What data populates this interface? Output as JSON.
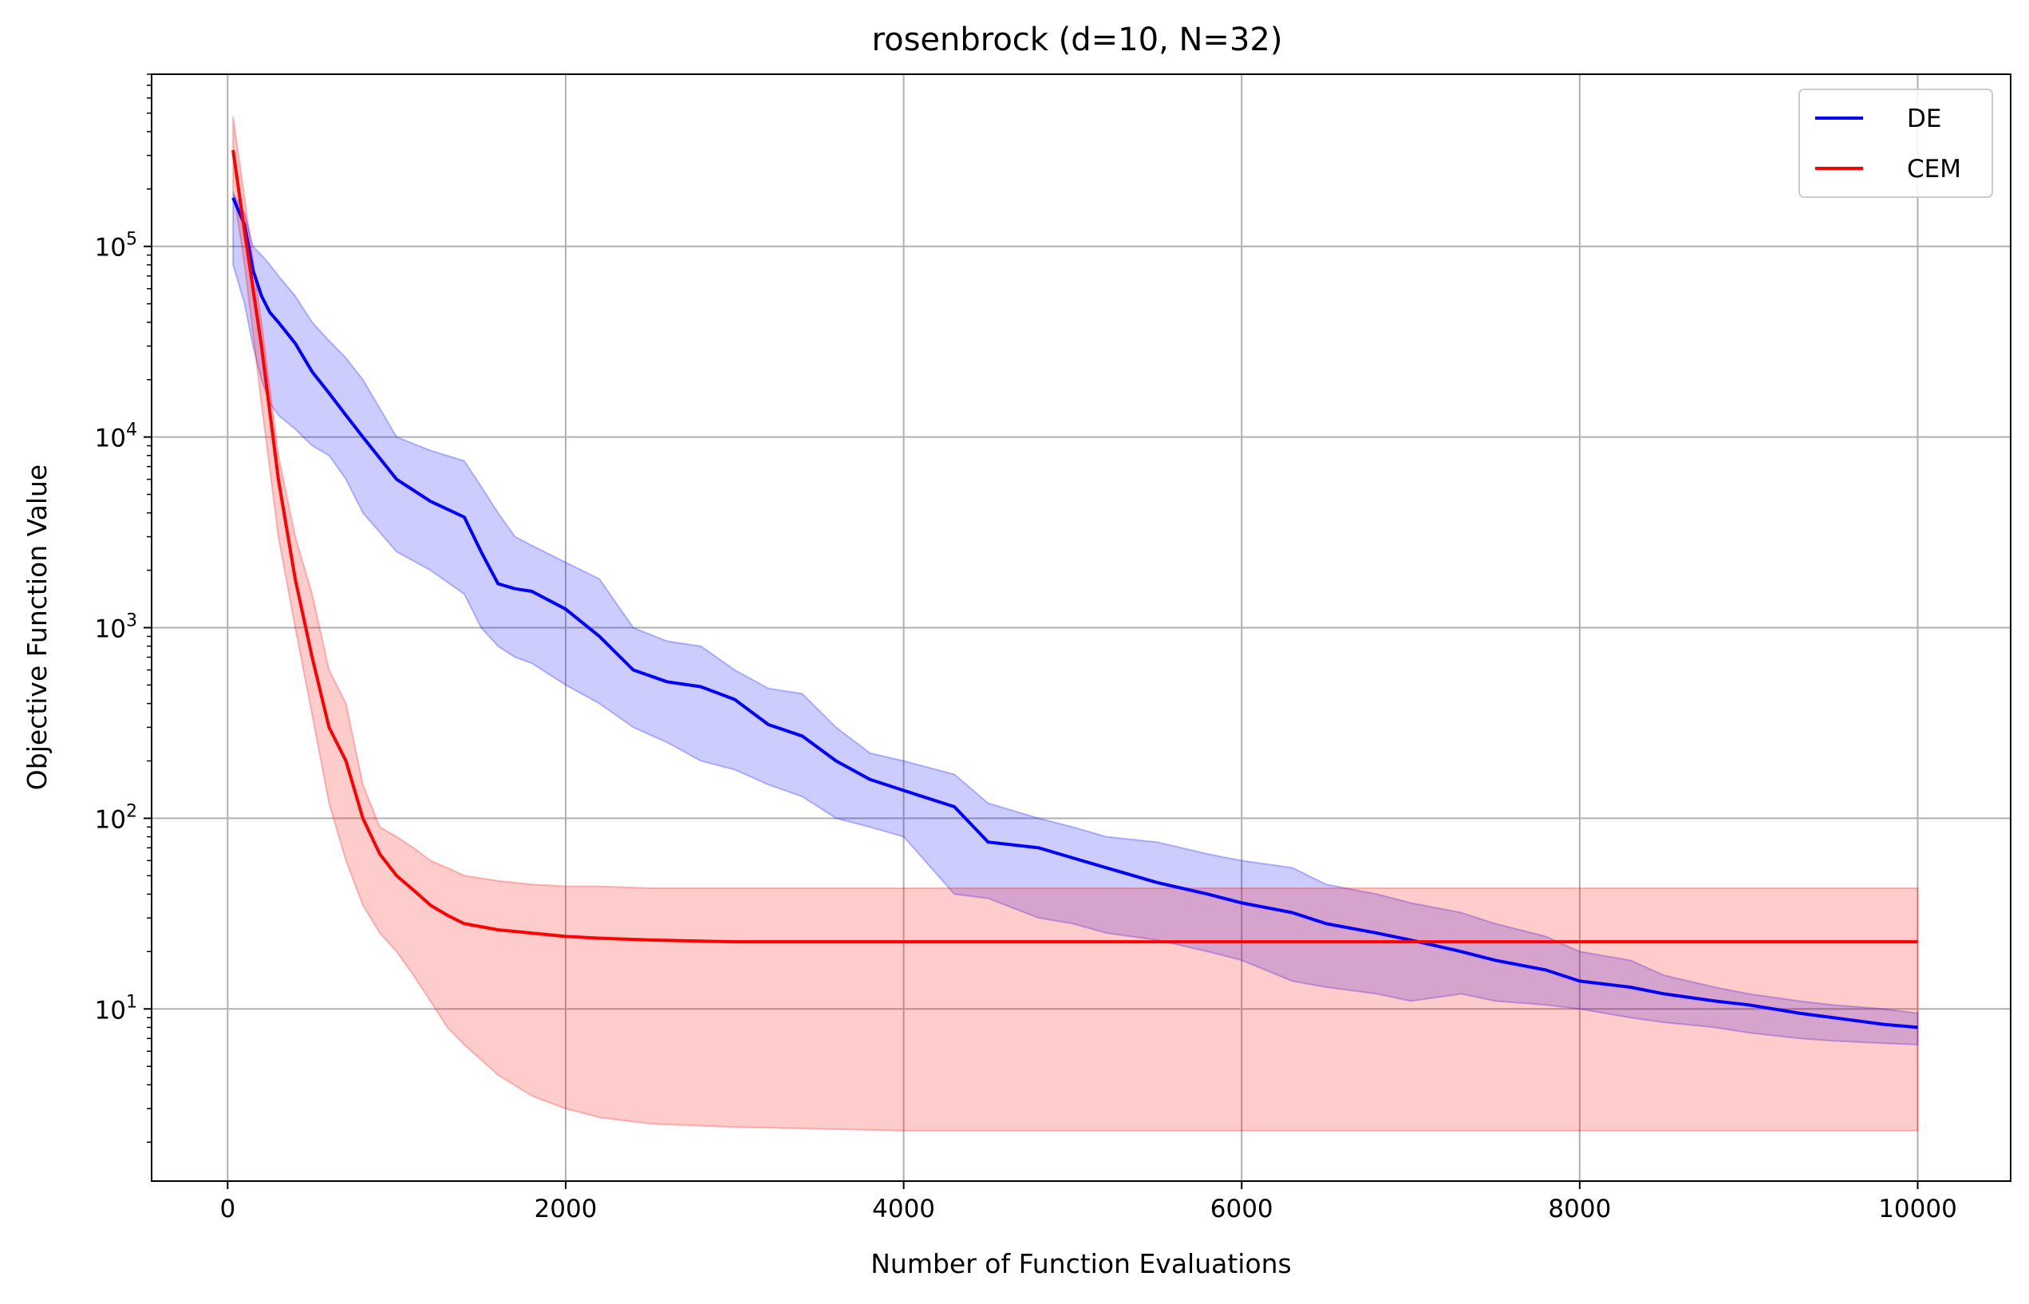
{
  "chart_data": {
    "type": "line",
    "title": "rosenbrock (d=10, N=32)",
    "xlabel": "Number of Function Evaluations",
    "ylabel": "Objective Function Value",
    "xscale": "linear",
    "yscale": "log",
    "xlim": [
      -450,
      10550
    ],
    "ylim": [
      1.25,
      800000
    ],
    "xticks": [
      0,
      2000,
      4000,
      6000,
      8000,
      10000
    ],
    "xtick_labels": [
      "0",
      "2000",
      "4000",
      "6000",
      "8000",
      "10000"
    ],
    "yticks": [
      10,
      100,
      1000,
      10000,
      100000
    ],
    "ytick_labels": [
      {
        "base": "10",
        "exp": "1"
      },
      {
        "base": "10",
        "exp": "2"
      },
      {
        "base": "10",
        "exp": "3"
      },
      {
        "base": "10",
        "exp": "4"
      },
      {
        "base": "10",
        "exp": "5"
      }
    ],
    "grid": true,
    "legend_position": "upper-right",
    "series": [
      {
        "name": "DE",
        "color": "#0000ff",
        "band_color": "#0000ff",
        "x": [
          32,
          100,
          150,
          200,
          250,
          300,
          400,
          500,
          600,
          700,
          800,
          1000,
          1200,
          1400,
          1500,
          1600,
          1700,
          1800,
          2000,
          2200,
          2400,
          2600,
          2800,
          3000,
          3200,
          3400,
          3600,
          3800,
          4000,
          4300,
          4500,
          4800,
          5000,
          5200,
          5500,
          5800,
          6000,
          6300,
          6500,
          6800,
          7000,
          7300,
          7500,
          7800,
          8000,
          8300,
          8500,
          8800,
          9000,
          9300,
          9500,
          9800,
          10000
        ],
        "y": [
          180000,
          130000,
          75000,
          55000,
          45000,
          40000,
          31000,
          22000,
          17000,
          13000,
          10000,
          6000,
          4600,
          3800,
          2500,
          1700,
          1600,
          1550,
          1250,
          900,
          600,
          520,
          490,
          420,
          310,
          270,
          200,
          160,
          140,
          115,
          75,
          70,
          62,
          55,
          46,
          40,
          36,
          32,
          28,
          25,
          23,
          20,
          18,
          16,
          14,
          13,
          12,
          11,
          10.5,
          9.5,
          9,
          8.3,
          8
        ],
        "upper": [
          190000,
          150000,
          100000,
          90000,
          80000,
          70000,
          55000,
          40000,
          32000,
          26000,
          20000,
          10000,
          8500,
          7500,
          5500,
          4000,
          3000,
          2700,
          2200,
          1800,
          1000,
          850,
          800,
          600,
          480,
          450,
          300,
          220,
          200,
          170,
          120,
          100,
          90,
          80,
          75,
          65,
          60,
          55,
          45,
          40,
          36,
          32,
          28,
          24,
          20,
          18,
          15,
          13,
          12,
          11,
          10.5,
          10,
          9.5
        ],
        "lower": [
          80000,
          50000,
          30000,
          20000,
          15000,
          13000,
          11000,
          9000,
          8000,
          6000,
          4000,
          2500,
          2000,
          1500,
          1000,
          800,
          700,
          650,
          500,
          400,
          300,
          250,
          200,
          180,
          150,
          130,
          100,
          90,
          80,
          40,
          38,
          30,
          28,
          25,
          23,
          20,
          18,
          14,
          13,
          12,
          11,
          12,
          11,
          10.5,
          10,
          9,
          8.5,
          8,
          7.5,
          7,
          6.8,
          6.6,
          6.5
        ]
      },
      {
        "name": "CEM",
        "color": "#ff0000",
        "band_color": "#ff0000",
        "x": [
          32,
          100,
          200,
          300,
          400,
          500,
          600,
          700,
          800,
          900,
          1000,
          1100,
          1200,
          1300,
          1400,
          1600,
          1800,
          2000,
          2200,
          2500,
          3000,
          4000,
          5000,
          6000,
          7000,
          8000,
          9000,
          10000
        ],
        "y": [
          320000,
          120000,
          30000,
          6000,
          1800,
          700,
          300,
          200,
          100,
          65,
          50,
          42,
          35,
          31,
          28,
          26,
          25,
          24,
          23.5,
          23,
          22.5,
          22.5,
          22.5,
          22.5,
          22.5,
          22.5,
          22.5,
          22.5
        ],
        "upper": [
          480000,
          180000,
          40000,
          8000,
          3000,
          1500,
          600,
          400,
          150,
          90,
          80,
          70,
          60,
          55,
          50,
          47,
          45,
          44,
          44,
          43,
          43,
          43,
          43,
          43,
          43,
          43,
          43,
          43
        ],
        "lower": [
          200000,
          80000,
          15000,
          3000,
          1000,
          350,
          120,
          60,
          35,
          25,
          20,
          15,
          11,
          8,
          6.5,
          4.5,
          3.5,
          3,
          2.7,
          2.5,
          2.4,
          2.3,
          2.3,
          2.3,
          2.3,
          2.3,
          2.3,
          2.3
        ]
      }
    ]
  }
}
